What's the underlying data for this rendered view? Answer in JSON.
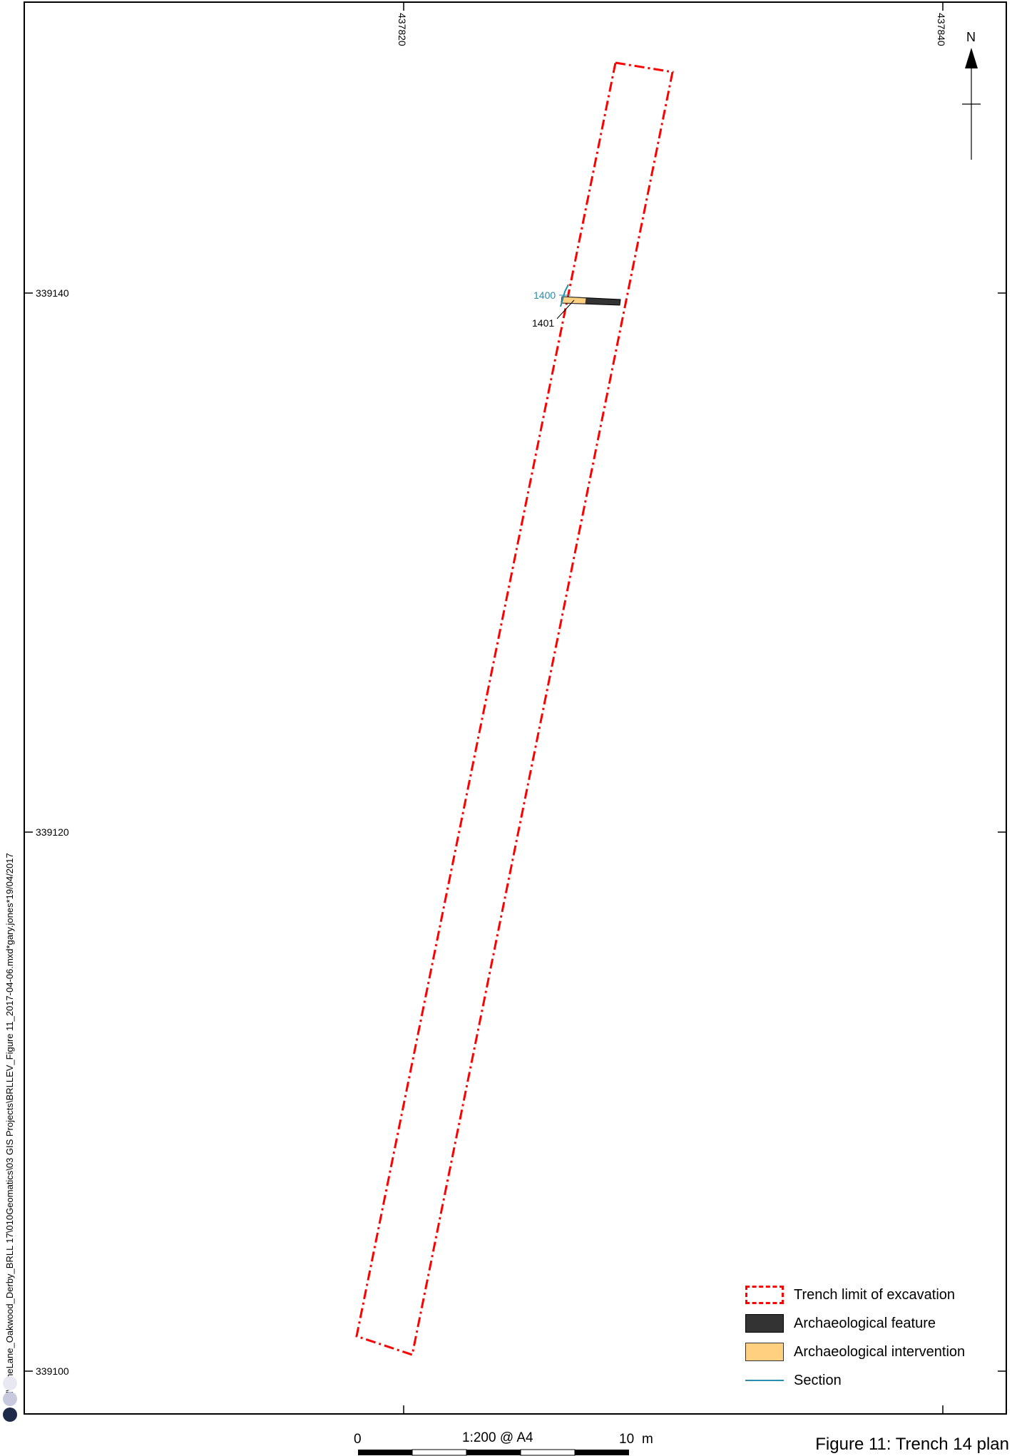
{
  "grid": {
    "easting_labels": [
      "437820",
      "437840"
    ],
    "northing_labels": [
      "339140",
      "339120",
      "339100"
    ]
  },
  "north_arrow": {
    "label": "N",
    "icon": "north-arrow-icon"
  },
  "features": {
    "intervention_labels": [
      "1400",
      "1401"
    ]
  },
  "legend": {
    "items": [
      {
        "label": "Trench limit of excavation",
        "symbol": "dash-dot-red-outline",
        "color": "#ff0000"
      },
      {
        "label": "Archaeological feature",
        "symbol": "fill",
        "color": "#333333"
      },
      {
        "label": "Archaeological intervention",
        "symbol": "fill",
        "color": "#ffd07f"
      },
      {
        "label": "Section",
        "symbol": "line",
        "color": "#2a8cb0"
      }
    ]
  },
  "scale_bar": {
    "start": "0",
    "end": "10",
    "unit": "m",
    "ratio": "1:200  @ A4"
  },
  "file_path": "X:\\l\\LimeLane_Oakwood_Derby_BRLL 17\\010Geomatics\\03 GIS Projects\\BRLLEV_Figure 11_2017-04-06.mxd*gary.jones*19/04/2017",
  "figure_title": "Figure 11: Trench 14 plan"
}
